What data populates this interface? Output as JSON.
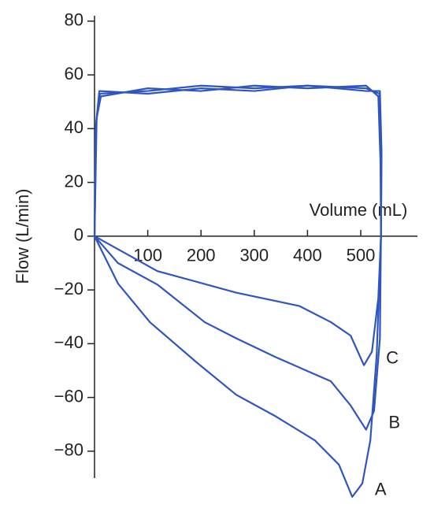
{
  "chart_data": {
    "type": "line",
    "x_label": "Volume (mL)",
    "y_label": "Flow (L/min)",
    "xlim": [
      0,
      600
    ],
    "ylim": [
      -90,
      82
    ],
    "xticks": [
      100,
      200,
      300,
      400,
      500
    ],
    "yticks": [
      {
        "value": -80,
        "label": "−80"
      },
      {
        "value": -60,
        "label": "−60"
      },
      {
        "value": -40,
        "label": "−40"
      },
      {
        "value": -20,
        "label": "−20"
      },
      0,
      20,
      40,
      60,
      80
    ],
    "series": [
      {
        "name": "A",
        "color": "#2f55c0",
        "x": [
          0,
          3,
          10,
          100,
          200,
          300,
          400,
          510,
          535,
          539,
          538,
          530,
          518,
          503,
          484,
          459,
          414,
          340,
          266,
          192,
          104,
          44,
          0
        ],
        "values": [
          0,
          42,
          53,
          54,
          56,
          55,
          56,
          55,
          53,
          30,
          0,
          -44,
          -76,
          -92,
          -97,
          -85,
          -76,
          -67,
          -59,
          -47,
          -32,
          -17.6,
          0
        ]
      },
      {
        "name": "B",
        "color": "#2f55c0",
        "x": [
          0,
          4,
          12,
          100,
          200,
          300,
          400,
          510,
          533,
          537,
          538,
          536,
          525,
          510,
          481,
          444,
          340,
          266,
          207,
          118,
          44,
          0
        ],
        "values": [
          0,
          44,
          52,
          55,
          54,
          56,
          55,
          56,
          52,
          28,
          0,
          -38,
          -65,
          -72,
          -63,
          -54,
          -45,
          -38,
          -32,
          -18,
          -10,
          0
        ]
      },
      {
        "name": "C",
        "color": "#2f55c0",
        "x": [
          0,
          2,
          9,
          100,
          200,
          300,
          400,
          510,
          536,
          539,
          538,
          533,
          521,
          506,
          481,
          444,
          385,
          266,
          118,
          0
        ],
        "values": [
          0,
          40,
          54,
          53,
          55,
          54,
          56,
          54,
          54,
          32,
          0,
          -23,
          -43,
          -48,
          -37,
          -32,
          -26,
          -21,
          -13,
          0
        ]
      }
    ]
  }
}
